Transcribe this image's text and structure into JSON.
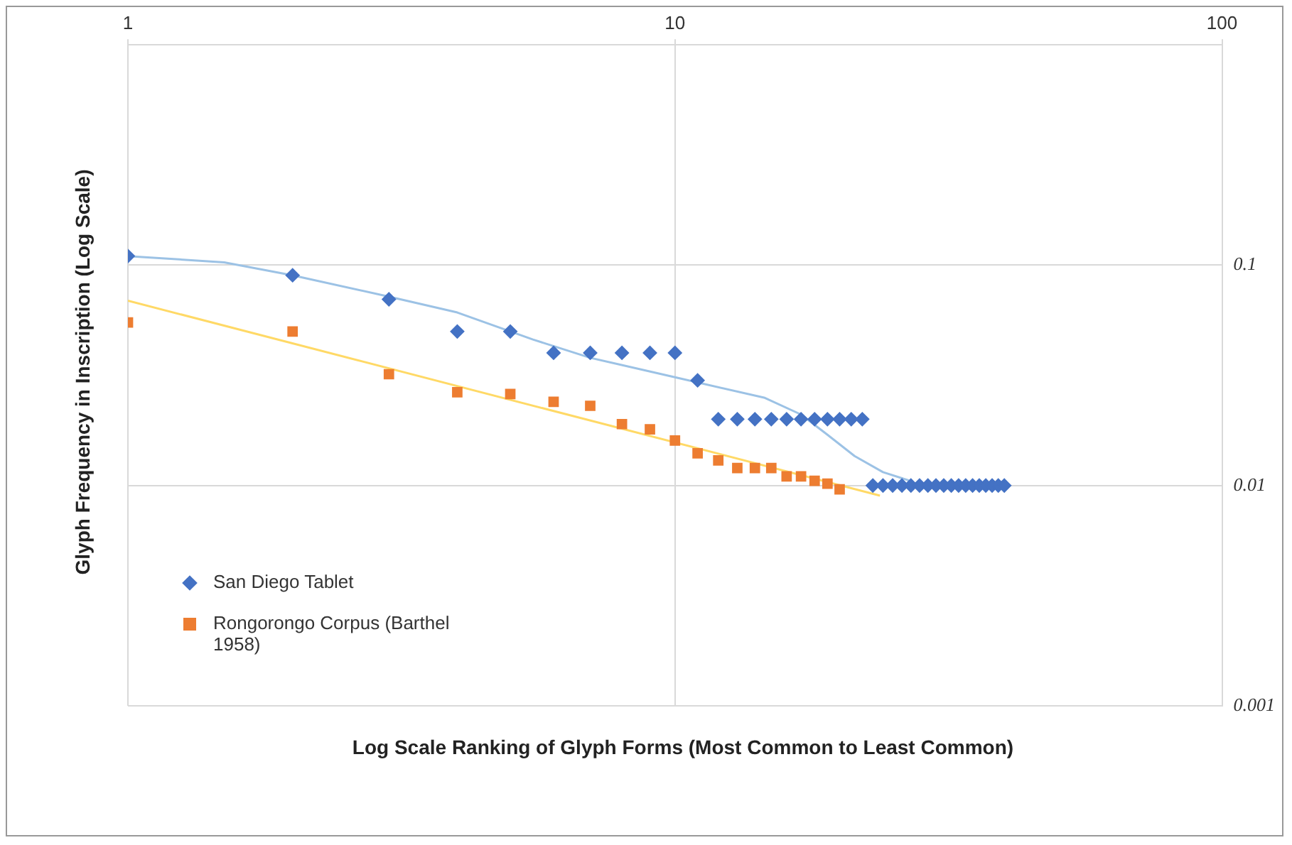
{
  "chart_data": {
    "type": "scatter",
    "xlabel": "Log Scale Ranking of Glyph Forms (Most Common to Least Common)",
    "ylabel": "Glyph Frequency in Inscription (Log Scale)",
    "log": "xy",
    "xlim": [
      1,
      100
    ],
    "xticks": [
      1,
      10,
      100
    ],
    "ylim": [
      0.001,
      1
    ],
    "yticks": [
      0.001,
      0.01,
      0.1
    ],
    "grid": true,
    "legend": "bottom left",
    "series": [
      {
        "name": "San Diego Tablet",
        "color": "#4472c4",
        "marker": "diamond",
        "x": [
          1,
          2,
          3,
          4,
          5,
          6,
          7,
          8,
          9,
          10,
          11,
          12,
          13,
          14,
          15,
          16,
          17,
          18,
          19,
          20,
          21,
          22,
          23,
          24,
          25,
          26,
          27,
          28,
          29,
          30,
          31,
          32,
          33,
          34,
          35,
          36,
          37,
          38,
          39,
          40
        ],
        "values": [
          0.11,
          0.09,
          0.07,
          0.05,
          0.05,
          0.04,
          0.04,
          0.04,
          0.04,
          0.04,
          0.03,
          0.02,
          0.02,
          0.02,
          0.02,
          0.02,
          0.02,
          0.02,
          0.02,
          0.02,
          0.02,
          0.02,
          0.01,
          0.01,
          0.01,
          0.01,
          0.01,
          0.01,
          0.01,
          0.01,
          0.01,
          0.01,
          0.01,
          0.01,
          0.01,
          0.01,
          0.01,
          0.01,
          0.01,
          0.01
        ]
      },
      {
        "name": "Rongorongo Corpus (Barthel 1958)",
        "color": "#ed7d31",
        "marker": "square",
        "x": [
          1,
          2,
          3,
          4,
          5,
          6,
          7,
          8,
          9,
          10,
          11,
          12,
          13,
          14,
          15,
          16,
          17,
          18,
          19,
          20
        ],
        "values": [
          0.055,
          0.05,
          0.032,
          0.0265,
          0.026,
          0.024,
          0.023,
          0.019,
          0.018,
          0.016,
          0.014,
          0.013,
          0.012,
          0.012,
          0.012,
          0.011,
          0.011,
          0.0105,
          0.0102,
          0.0096
        ]
      },
      {
        "type": "line",
        "color": "#9cc2e5",
        "marker": "none",
        "x": [
          1,
          1.5,
          2,
          3,
          4,
          5.5,
          7,
          10,
          14.6,
          17,
          19,
          21.3,
          24,
          26.6,
          28
        ],
        "values": [
          0.11,
          0.103,
          0.09,
          0.072,
          0.061,
          0.046,
          0.038,
          0.031,
          0.025,
          0.021,
          0.017,
          0.0136,
          0.0115,
          0.0106,
          0.01
        ]
      },
      {
        "type": "line",
        "color": "#ffd966",
        "marker": "none",
        "x": [
          1,
          23.7
        ],
        "values": [
          0.069,
          0.009
        ]
      }
    ]
  }
}
